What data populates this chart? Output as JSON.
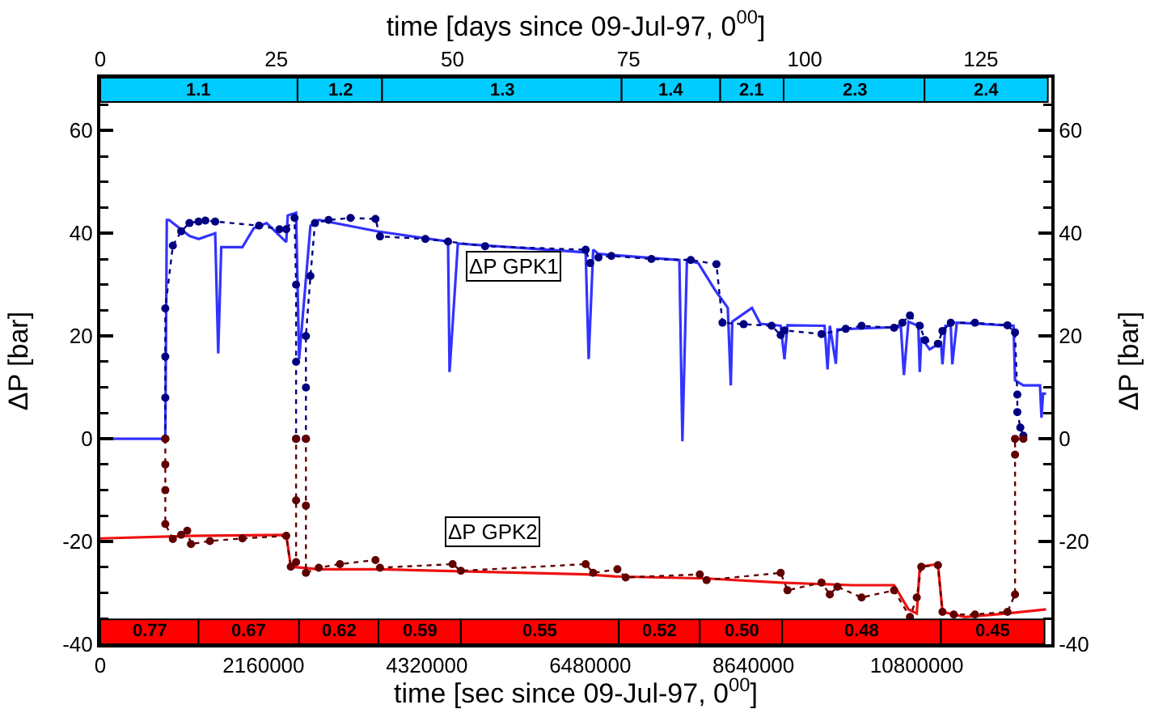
{
  "chart_data": {
    "type": "line",
    "xlabel": "time [sec since 09-Jul-97, 0$^{00}$]",
    "x2label": "time [days since 09-Jul-97, 0$^{00}$]",
    "ylabel": "ΔP [bar]",
    "y2label": "ΔP [bar]",
    "xlim": [
      0,
      12580000
    ],
    "xticks": [
      0,
      2160000,
      4320000,
      6480000,
      8640000,
      10800000
    ],
    "x2lim": [
      0,
      135
    ],
    "x2ticks": [
      0,
      25,
      50,
      75,
      100,
      125
    ],
    "ylim": [
      -40,
      70.3
    ],
    "yticks": [
      {
        "value": -35,
        "label": null
      },
      -40,
      -20,
      0,
      20,
      40,
      60,
      {
        "value": -30,
        "label": null
      },
      {
        "value": -25,
        "label": null
      },
      {
        "value": -15,
        "label": null
      },
      {
        "value": -10,
        "label": null
      },
      {
        "value": -5,
        "label": null
      },
      {
        "value": 5,
        "label": null
      },
      {
        "value": 10,
        "label": null
      },
      {
        "value": 15,
        "label": null
      },
      {
        "value": 25,
        "label": null
      },
      {
        "value": 30,
        "label": null
      },
      {
        "value": 35,
        "label": null
      },
      {
        "value": 45,
        "label": null
      },
      {
        "value": 50,
        "label": null
      },
      {
        "value": 55,
        "label": null
      },
      {
        "value": 65,
        "label": null
      }
    ],
    "y2lim": [
      -40,
      70.3
    ],
    "y2ticks": [
      -40,
      -20,
      0,
      20,
      40,
      60,
      {
        "value": -35,
        "label": null
      },
      {
        "value": -30,
        "label": null
      },
      {
        "value": -25,
        "label": null
      },
      {
        "value": -15,
        "label": null
      },
      {
        "value": -10,
        "label": null
      },
      {
        "value": -5,
        "label": null
      },
      {
        "value": 5,
        "label": null
      },
      {
        "value": 10,
        "label": null
      },
      {
        "value": 15,
        "label": null
      },
      {
        "value": 25,
        "label": null
      },
      {
        "value": 30,
        "label": null
      },
      {
        "value": 35,
        "label": null
      },
      {
        "value": 45,
        "label": null
      },
      {
        "value": 50,
        "label": null
      },
      {
        "value": 55,
        "label": null
      },
      {
        "value": 65,
        "label": null
      }
    ],
    "grid": false,
    "series": [
      {
        "color": "#3333ff",
        "marker": "none",
        "line_style": "solid",
        "x": [
          0,
          860000,
          880000,
          910000,
          1180000,
          1300000,
          1520000,
          1560000,
          1600000,
          1880000,
          2030000,
          2200000,
          2460000,
          2480000,
          2590000,
          2630000,
          2780000,
          2890000,
          3660000,
          4600000,
          4620000,
          4730000,
          6420000,
          6460000,
          6520000,
          6590000,
          7660000,
          7700000,
          7760000,
          7910000,
          8130000,
          8300000,
          8340000,
          8360000,
          8620000,
          8730000,
          9000000,
          9050000,
          9090000,
          9580000,
          9620000,
          9650000,
          9730000,
          9750000,
          10590000,
          10630000,
          10690000,
          10820000,
          10840000,
          10860000,
          10970000,
          11120000,
          11140000,
          11180000,
          11250000,
          11270000,
          11330000,
          12080000,
          12100000,
          12210000,
          12430000,
          12450000,
          12470000,
          12510000
        ],
        "values": [
          0,
          0,
          42.6,
          42.6,
          39.5,
          38.9,
          40,
          16.6,
          37.3,
          37.3,
          41,
          42,
          38.3,
          43.5,
          44,
          15.5,
          41.5,
          42.6,
          40.4,
          38.4,
          13,
          38,
          36.3,
          15.5,
          36.8,
          36,
          34.8,
          -0.5,
          34.8,
          34.2,
          29,
          25.5,
          10.4,
          22.8,
          25.5,
          22.4,
          22,
          15.5,
          22.1,
          22,
          13.5,
          22,
          14.6,
          21.3,
          21.8,
          12.4,
          22.8,
          22,
          13,
          19.7,
          17.4,
          18.7,
          14.5,
          22,
          22,
          14.5,
          22.6,
          22,
          11.4,
          10.4,
          10.4,
          4.1,
          8.8,
          8.8
        ]
      },
      {
        "color": "#000080",
        "marker": "circle",
        "line_style": "dotted",
        "x": [
          860000,
          860000,
          860000,
          860000,
          960000,
          1070000,
          1180000,
          1300000,
          1390000,
          1520000,
          2100000,
          2370000,
          2460000,
          2570000,
          2590000,
          2590000,
          2590000,
          2720000,
          2720000,
          2720000,
          2780000,
          2840000,
          3020000,
          3310000,
          3640000,
          3700000,
          4300000,
          4600000,
          5090000,
          6420000,
          6480000,
          6590000,
          6760000,
          7290000,
          7810000,
          8150000,
          8230000,
          8510000,
          8880000,
          9000000,
          9050000,
          9540000,
          9860000,
          10070000,
          10500000,
          10610000,
          10710000,
          10840000,
          10910000,
          11080000,
          11140000,
          11250000,
          11570000,
          12000000,
          12100000,
          12130000,
          12130000,
          12170000,
          12210000
        ],
        "values": [
          0,
          8,
          16,
          25.4,
          37.6,
          40.4,
          42,
          42.3,
          42.5,
          42.3,
          41.5,
          40.8,
          40.8,
          43,
          30,
          15,
          0,
          0,
          10,
          20,
          31.7,
          42,
          42.6,
          43,
          42.8,
          39.4,
          38.9,
          38.4,
          37.5,
          36.8,
          34.2,
          35.3,
          35.6,
          35,
          34.8,
          34,
          22.6,
          22.3,
          22,
          20.2,
          21.1,
          20.4,
          21.4,
          22,
          21.6,
          22.6,
          24,
          22,
          19.2,
          18.5,
          21,
          22.6,
          22.6,
          22.1,
          20.7,
          8.6,
          5.2,
          2.2,
          0.6
        ]
      },
      {
        "color": "#ee1111",
        "marker": "none",
        "line_style": "solid",
        "x": [
          0,
          1180000,
          2460000,
          2520000,
          2890000,
          3700000,
          6420000,
          6800000,
          8020000,
          9000000,
          9940000,
          10500000,
          10690000,
          10800000,
          10840000,
          11080000,
          11140000,
          11440000,
          12000000,
          12510000
        ],
        "values": [
          -19.4,
          -18.9,
          -18.7,
          -24.9,
          -25.4,
          -25.4,
          -26.4,
          -26.8,
          -27.2,
          -28,
          -28.5,
          -28.5,
          -33.2,
          -34,
          -24.9,
          -24.4,
          -33.7,
          -34.7,
          -34,
          -33.2
        ]
      },
      {
        "color": "#600000",
        "marker": "circle",
        "line_style": "dotted",
        "x": [
          860000,
          860000,
          860000,
          860000,
          960000,
          1070000,
          1150000,
          1200000,
          1450000,
          1880000,
          2460000,
          2520000,
          2590000,
          2590000,
          2590000,
          2720000,
          2720000,
          2720000,
          2890000,
          3170000,
          3640000,
          3700000,
          4660000,
          4770000,
          6420000,
          6520000,
          6840000,
          6950000,
          7930000,
          8020000,
          9000000,
          9090000,
          9540000,
          9650000,
          9750000,
          10070000,
          10500000,
          10710000,
          10800000,
          10860000,
          11080000,
          11140000,
          11290000,
          11570000,
          12000000,
          12100000,
          12100000,
          12100000,
          12210000
        ],
        "values": [
          0,
          -5,
          -10,
          -16.6,
          -19.5,
          -18.7,
          -17.9,
          -20.5,
          -19.9,
          -19.4,
          -18.9,
          -24.9,
          -24,
          -12,
          0,
          0,
          -13,
          -26.1,
          -25.1,
          -24.4,
          -23.6,
          -25.1,
          -24.4,
          -25.7,
          -24.4,
          -26.1,
          -25.4,
          -27,
          -26.4,
          -27.5,
          -26.1,
          -29.5,
          -28,
          -30.3,
          -28.8,
          -30.9,
          -29.5,
          -34.7,
          -30.9,
          -24.9,
          -24.6,
          -33.7,
          -34.2,
          -34.2,
          -33.7,
          -30.3,
          -3.1,
          0,
          0
        ]
      }
    ],
    "annotations": [
      "ΔP GPK1",
      "ΔP GPK2"
    ],
    "bands": [
      {
        "axis": "x2",
        "from": 0,
        "to": 28,
        "label": "1.1",
        "color": "#00ccff"
      },
      {
        "axis": "x2",
        "from": 28,
        "to": 40,
        "label": "1.2",
        "color": "#00ccff"
      },
      {
        "axis": "x2",
        "from": 40,
        "to": 74,
        "label": "1.3",
        "color": "#00ccff"
      },
      {
        "axis": "x2",
        "from": 74,
        "to": 88,
        "label": "1.4",
        "color": "#00ccff"
      },
      {
        "axis": "x2",
        "from": 88,
        "to": 97,
        "label": "2.1",
        "color": "#00ccff"
      },
      {
        "axis": "x2",
        "from": 97,
        "to": 117,
        "label": "2.3",
        "color": "#00ccff"
      },
      {
        "axis": "x2",
        "from": 117,
        "to": 134.5,
        "label": "2.4",
        "color": "#00ccff"
      },
      {
        "axis": "x",
        "from": 0,
        "to": 1300000,
        "label": "0.77",
        "color": "#ff0000"
      },
      {
        "axis": "x",
        "from": 1300000,
        "to": 2630000,
        "label": "0.67",
        "color": "#ff0000"
      },
      {
        "axis": "x",
        "from": 2630000,
        "to": 3680000,
        "label": "0.62",
        "color": "#ff0000"
      },
      {
        "axis": "x",
        "from": 3680000,
        "to": 4770000,
        "label": "0.59",
        "color": "#ff0000"
      },
      {
        "axis": "x",
        "from": 4770000,
        "to": 6860000,
        "label": "0.55",
        "color": "#ff0000"
      },
      {
        "axis": "x",
        "from": 6860000,
        "to": 7930000,
        "label": "0.52",
        "color": "#ff0000"
      },
      {
        "axis": "x",
        "from": 7930000,
        "to": 9020000,
        "label": "0.50",
        "color": "#ff0000"
      },
      {
        "axis": "x",
        "from": 9020000,
        "to": 11120000,
        "label": "0.48",
        "color": "#ff0000"
      },
      {
        "axis": "x",
        "from": 11120000,
        "to": 12490000,
        "label": "0.45",
        "color": "#ff0000"
      }
    ]
  }
}
